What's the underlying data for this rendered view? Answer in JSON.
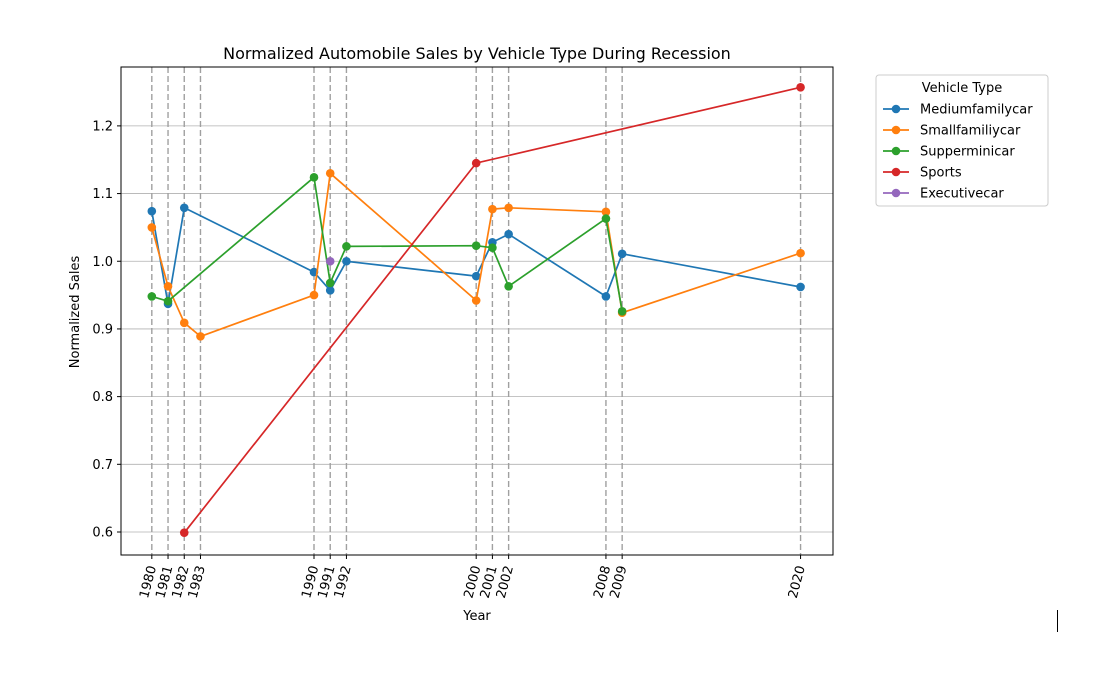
{
  "chart_data": {
    "type": "line",
    "title": "Normalized Automobile Sales by Vehicle Type During Recession",
    "xlabel": "Year",
    "ylabel": "Normalized Sales",
    "xlim": [
      1978.1,
      2022.0
    ],
    "ylim": [
      0.566,
      1.287
    ],
    "x_ticks": [
      1980,
      1981,
      1982,
      1983,
      1990,
      1991,
      1992,
      2000,
      2001,
      2002,
      2008,
      2009,
      2020
    ],
    "y_ticks": [
      0.6,
      0.7,
      0.8,
      0.9,
      1.0,
      1.1,
      1.2
    ],
    "y_tick_labels": [
      "0.6",
      "0.7",
      "0.8",
      "0.9",
      "1.0",
      "1.1",
      "1.2"
    ],
    "grid": "horizontal",
    "recession_lines": [
      1980,
      1981,
      1982,
      1983,
      1990,
      1991,
      1992,
      2000,
      2001,
      2002,
      2008,
      2009,
      2020
    ],
    "legend": {
      "title": "Vehicle Type",
      "placement": "outside-top-right"
    },
    "series": [
      {
        "name": "Mediumfamilycar",
        "color": "#1f77b4",
        "points": [
          [
            1980,
            1.074
          ],
          [
            1981,
            0.937
          ],
          [
            1982,
            1.079
          ],
          [
            1990,
            0.984
          ],
          [
            1991,
            0.957
          ],
          [
            1992,
            1.0
          ],
          [
            2000,
            0.978
          ],
          [
            2001,
            1.028
          ],
          [
            2002,
            1.04
          ],
          [
            2008,
            0.948
          ],
          [
            2009,
            1.011
          ],
          [
            2020,
            0.962
          ]
        ]
      },
      {
        "name": "Smallfamiliycar",
        "color": "#ff7f0e",
        "points": [
          [
            1980,
            1.05
          ],
          [
            1981,
            0.963
          ],
          [
            1982,
            0.909
          ],
          [
            1983,
            0.889
          ],
          [
            1990,
            0.95
          ],
          [
            1991,
            1.13
          ],
          [
            2000,
            0.942
          ],
          [
            2001,
            1.077
          ],
          [
            2002,
            1.079
          ],
          [
            2008,
            1.073
          ],
          [
            2009,
            0.924
          ],
          [
            2020,
            1.012
          ]
        ]
      },
      {
        "name": "Supperminicar",
        "color": "#2ca02c",
        "points": [
          [
            1980,
            0.948
          ],
          [
            1981,
            0.941
          ],
          [
            1990,
            1.124
          ],
          [
            1991,
            0.968
          ],
          [
            1992,
            1.022
          ],
          [
            2000,
            1.023
          ],
          [
            2001,
            1.02
          ],
          [
            2002,
            0.963
          ],
          [
            2008,
            1.063
          ],
          [
            2009,
            0.926
          ]
        ]
      },
      {
        "name": "Sports",
        "color": "#d62728",
        "points": [
          [
            1982,
            0.599
          ],
          [
            2000,
            1.145
          ],
          [
            2020,
            1.257
          ]
        ]
      },
      {
        "name": "Executivecar",
        "color": "#9467bd",
        "points": [
          [
            1991,
            1.0
          ]
        ]
      }
    ]
  }
}
